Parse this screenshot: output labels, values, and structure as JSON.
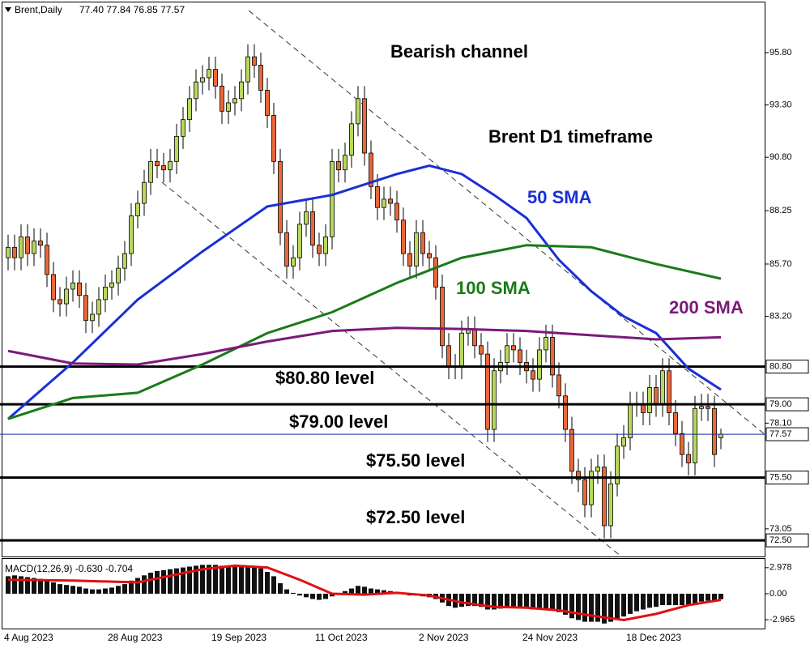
{
  "chart_data": [
    {
      "type": "candlestick",
      "title": "Brent,Daily",
      "subtitle": "77.40 77.84 76.85 77.57",
      "categories": [
        "4 Aug 2023",
        null,
        null,
        null,
        null,
        null,
        null,
        null,
        null,
        null,
        null,
        null,
        null,
        null,
        null,
        null,
        "28 Aug 2023",
        null,
        null,
        null,
        null,
        null,
        null,
        null,
        null,
        null,
        null,
        null,
        null,
        null,
        null,
        null,
        "19 Sep 2023",
        null,
        null,
        null,
        null,
        null,
        null,
        null,
        null,
        null,
        null,
        null,
        null,
        null,
        null,
        null,
        "11 Oct 2023",
        null,
        null,
        null,
        null,
        null,
        null,
        null,
        null,
        null,
        null,
        null,
        null,
        null,
        null,
        null,
        "2 Nov 2023",
        null,
        null,
        null,
        null,
        null,
        null,
        null,
        null,
        null,
        null,
        null,
        null,
        null,
        null,
        null,
        "24 Nov 2023",
        null,
        null,
        null,
        null,
        null,
        null,
        null,
        null,
        null,
        null,
        null,
        null,
        null,
        null,
        null,
        "18 Dec 2023",
        null,
        null,
        null,
        null,
        null,
        null,
        null,
        null,
        null,
        null,
        null,
        null,
        null,
        null
      ],
      "open": [
        86.0,
        86.5,
        86.0,
        87.0,
        86.2,
        86.8,
        86.6,
        85.2,
        84.0,
        83.8,
        84.5,
        84.8,
        84.2,
        83.0,
        83.3,
        84.0,
        84.6,
        84.8,
        85.5,
        86.2,
        88.0,
        88.6,
        89.6,
        90.6,
        90.4,
        90.2,
        90.6,
        91.8,
        92.6,
        93.6,
        94.4,
        94.6,
        95.0,
        94.2,
        93.0,
        93.4,
        93.6,
        94.4,
        95.6,
        95.2,
        94.0,
        92.8,
        90.6,
        87.2,
        85.6,
        86.0,
        87.6,
        88.2,
        86.6,
        86.2,
        87.0,
        90.6,
        90.2,
        90.9,
        92.4,
        93.6,
        91.0,
        89.4,
        88.4,
        88.8,
        88.6,
        87.8,
        86.2,
        85.6,
        87.2,
        86.2,
        86.0,
        84.6,
        81.8,
        80.8,
        80.8,
        82.4,
        82.6,
        81.8,
        81.4,
        77.8,
        80.6,
        81.0,
        81.8,
        81.6,
        81.0,
        80.6,
        80.2,
        81.6,
        82.2,
        80.4,
        79.4,
        77.8,
        75.8,
        75.4,
        74.2,
        75.8,
        76.0,
        73.2,
        75.2,
        77.0,
        77.4,
        79.0,
        79.0,
        78.6,
        79.8,
        79.0,
        80.6,
        78.6,
        77.6,
        76.6,
        76.2,
        78.8,
        78.9,
        78.8,
        77.4
      ],
      "high": [
        87.1,
        87.1,
        87.6,
        87.6,
        87.4,
        87.4,
        87.2,
        85.8,
        84.6,
        85.1,
        85.4,
        85.4,
        84.8,
        83.9,
        84.6,
        85.2,
        85.4,
        86.1,
        86.8,
        88.6,
        89.2,
        90.2,
        91.2,
        91.2,
        91.0,
        91.2,
        92.4,
        93.2,
        94.2,
        95.0,
        95.2,
        95.6,
        95.6,
        94.8,
        94.0,
        94.2,
        95.0,
        96.2,
        96.2,
        95.8,
        94.6,
        93.4,
        91.2,
        87.8,
        86.6,
        88.2,
        88.8,
        88.8,
        87.2,
        87.6,
        91.2,
        91.2,
        91.5,
        93.0,
        94.2,
        94.2,
        91.6,
        90.0,
        89.4,
        89.4,
        89.2,
        88.4,
        86.8,
        87.8,
        87.8,
        86.8,
        86.6,
        85.2,
        82.4,
        81.4,
        83.0,
        83.2,
        83.2,
        82.4,
        82.0,
        81.2,
        81.6,
        82.4,
        82.4,
        82.2,
        81.6,
        81.2,
        82.2,
        82.8,
        82.8,
        81.0,
        80.0,
        78.4,
        76.4,
        76.0,
        76.4,
        76.6,
        76.6,
        75.8,
        77.6,
        78.0,
        79.6,
        79.6,
        79.6,
        80.4,
        80.4,
        81.2,
        81.2,
        79.2,
        78.2,
        77.2,
        79.4,
        79.5,
        79.5,
        79.4,
        77.84
      ],
      "low": [
        85.4,
        85.4,
        85.4,
        85.6,
        85.6,
        86.0,
        84.6,
        83.4,
        83.2,
        83.2,
        83.9,
        83.6,
        82.4,
        82.4,
        82.7,
        83.4,
        84.0,
        84.2,
        84.9,
        85.6,
        87.4,
        88.0,
        89.0,
        89.8,
        89.6,
        89.6,
        90.0,
        91.2,
        92.0,
        93.0,
        93.8,
        94.0,
        93.6,
        92.4,
        92.4,
        92.8,
        93.0,
        93.8,
        94.6,
        93.4,
        92.2,
        90.0,
        86.6,
        85.0,
        85.0,
        85.4,
        87.0,
        86.0,
        85.6,
        85.6,
        86.4,
        89.6,
        89.6,
        90.3,
        91.8,
        90.4,
        88.8,
        87.8,
        87.8,
        88.0,
        87.2,
        85.6,
        85.0,
        85.0,
        85.6,
        85.4,
        84.0,
        81.2,
        80.2,
        80.2,
        80.2,
        81.8,
        81.2,
        80.8,
        77.2,
        77.2,
        80.0,
        80.4,
        81.0,
        80.4,
        80.0,
        79.6,
        79.6,
        81.0,
        79.8,
        78.8,
        77.2,
        75.2,
        74.8,
        73.6,
        73.6,
        75.2,
        72.6,
        72.6,
        74.6,
        76.4,
        76.8,
        78.4,
        78.0,
        78.0,
        78.4,
        78.4,
        78.0,
        77.0,
        76.0,
        75.6,
        75.6,
        78.2,
        78.2,
        76.0,
        76.85
      ],
      "close": [
        86.5,
        86.0,
        87.0,
        86.2,
        86.8,
        86.6,
        85.2,
        84.0,
        83.8,
        84.5,
        84.8,
        84.2,
        83.0,
        83.3,
        84.0,
        84.6,
        84.8,
        85.5,
        86.2,
        88.0,
        88.6,
        89.6,
        90.6,
        90.4,
        90.2,
        90.6,
        91.8,
        92.6,
        93.6,
        94.4,
        94.6,
        95.0,
        94.2,
        93.0,
        93.4,
        93.6,
        94.4,
        95.6,
        95.2,
        94.0,
        92.8,
        90.6,
        87.2,
        85.6,
        86.0,
        87.6,
        88.2,
        86.6,
        86.2,
        87.0,
        90.6,
        90.2,
        90.9,
        92.4,
        93.6,
        91.0,
        89.4,
        88.4,
        88.8,
        88.6,
        87.8,
        86.2,
        85.6,
        87.2,
        86.2,
        86.0,
        84.6,
        81.8,
        80.8,
        80.8,
        82.4,
        82.6,
        81.8,
        81.4,
        77.8,
        80.6,
        81.0,
        81.8,
        81.6,
        81.0,
        80.6,
        80.2,
        81.6,
        82.2,
        80.4,
        79.4,
        77.8,
        75.8,
        75.4,
        74.2,
        75.8,
        76.0,
        73.2,
        75.2,
        77.0,
        77.4,
        79.0,
        79.0,
        78.6,
        79.8,
        79.0,
        80.6,
        78.6,
        77.6,
        76.6,
        76.2,
        78.8,
        78.9,
        78.8,
        76.6,
        77.57
      ],
      "up_color": "#b8d85c",
      "down_color": "#e8683a",
      "ylim": [
        71.73,
        98.12
      ],
      "yticks": [
        {
          "value": 95.8,
          "label": "95.80"
        },
        {
          "value": 93.3,
          "label": "93.30"
        },
        {
          "value": 90.8,
          "label": "90.80"
        },
        {
          "value": 88.25,
          "label": "88.25"
        },
        {
          "value": 85.7,
          "label": "85.70"
        },
        {
          "value": 83.2,
          "label": "83.20"
        },
        {
          "value": 78.1,
          "label": "78.10"
        },
        {
          "value": 73.05,
          "label": "73.05"
        }
      ],
      "lines": [
        {
          "name": "50 SMA",
          "color": "#1a2fd6",
          "x": [
            0,
            10,
            20,
            30,
            40,
            50,
            60,
            65,
            70,
            75,
            80,
            85,
            90,
            95,
            100,
            105,
            110
          ],
          "values": [
            78.3,
            81.0,
            84.0,
            86.3,
            88.45,
            89.0,
            90.0,
            90.4,
            90.0,
            89.0,
            87.9,
            85.9,
            84.4,
            83.2,
            82.4,
            80.7,
            79.7
          ]
        },
        {
          "name": "100 SMA",
          "color": "#1a7a1a",
          "x": [
            0,
            10,
            20,
            30,
            40,
            50,
            60,
            70,
            80,
            90,
            100,
            110
          ],
          "values": [
            78.3,
            79.3,
            79.55,
            80.9,
            82.4,
            83.4,
            84.8,
            86.0,
            86.6,
            86.5,
            85.7,
            85.0
          ]
        },
        {
          "name": "200 SMA",
          "color": "#7a1a7a",
          "x": [
            0,
            10,
            20,
            30,
            40,
            50,
            60,
            70,
            80,
            90,
            100,
            110
          ],
          "values": [
            81.55,
            80.95,
            80.9,
            81.4,
            82.0,
            82.5,
            82.65,
            82.6,
            82.5,
            82.3,
            82.1,
            82.2
          ]
        }
      ],
      "levels": [
        {
          "value": 80.8,
          "label": "80.80",
          "text": "$80.80 level"
        },
        {
          "value": 79.0,
          "label": "79.00",
          "text": "$79.00 level"
        },
        {
          "value": 75.5,
          "label": "75.50",
          "text": "$75.50 level"
        },
        {
          "value": 72.5,
          "label": "72.50",
          "text": "$72.50 level"
        }
      ],
      "last_price": {
        "value": 77.57,
        "label": "77.57"
      },
      "annotations": [
        "Bearish channel",
        "Brent D1 timeframe"
      ]
    },
    {
      "type": "macd",
      "title": "MACD(12,26,9) -0.630 -0.704",
      "color": "#111111",
      "values": [
        2.0,
        2.1,
        2.0,
        1.9,
        1.8,
        1.7,
        1.5,
        1.3,
        1.1,
        1.0,
        0.9,
        0.8,
        0.6,
        0.5,
        0.5,
        0.6,
        0.7,
        0.9,
        1.1,
        1.5,
        1.8,
        2.1,
        2.4,
        2.6,
        2.7,
        2.8,
        2.9,
        3.0,
        3.1,
        3.2,
        3.3,
        3.3,
        3.3,
        3.2,
        3.1,
        3.1,
        3.1,
        3.2,
        3.1,
        2.9,
        2.5,
        2.0,
        1.2,
        0.5,
        0.1,
        -0.2,
        -0.4,
        -0.6,
        -0.7,
        -0.6,
        -0.3,
        0.0,
        0.3,
        0.6,
        0.9,
        0.8,
        0.6,
        0.5,
        0.4,
        0.3,
        0.2,
        0.0,
        -0.2,
        -0.2,
        -0.3,
        -0.4,
        -0.6,
        -1.0,
        -1.4,
        -1.6,
        -1.5,
        -1.4,
        -1.4,
        -1.5,
        -1.8,
        -1.8,
        -1.7,
        -1.6,
        -1.6,
        -1.6,
        -1.7,
        -1.8,
        -1.8,
        -1.7,
        -1.9,
        -2.1,
        -2.4,
        -2.8,
        -3.0,
        -3.2,
        -3.2,
        -3.2,
        -3.4,
        -3.2,
        -2.9,
        -2.6,
        -2.3,
        -2.0,
        -1.8,
        -1.6,
        -1.5,
        -1.3,
        -1.3,
        -1.3,
        -1.3,
        -1.3,
        -1.1,
        -0.9,
        -0.8,
        -0.8,
        -0.63
      ],
      "signal": {
        "color": "#e01010",
        "x": [
          0,
          10,
          20,
          30,
          35,
          40,
          45,
          50,
          55,
          60,
          65,
          70,
          75,
          80,
          85,
          90,
          95,
          100,
          105,
          110
        ],
        "values": [
          1.6,
          1.5,
          1.3,
          2.8,
          3.2,
          3.0,
          1.6,
          0.0,
          -0.1,
          0.1,
          -0.2,
          -1.0,
          -1.5,
          -1.6,
          -1.9,
          -2.5,
          -3.0,
          -2.3,
          -1.3,
          -0.704
        ]
      },
      "ylim": [
        -4.07,
        3.98
      ],
      "yticks": [
        {
          "value": 2.978,
          "label": "2.978"
        },
        {
          "value": 0,
          "label": "0.00"
        },
        {
          "value": -2.965,
          "label": "-2.965"
        }
      ]
    }
  ]
}
